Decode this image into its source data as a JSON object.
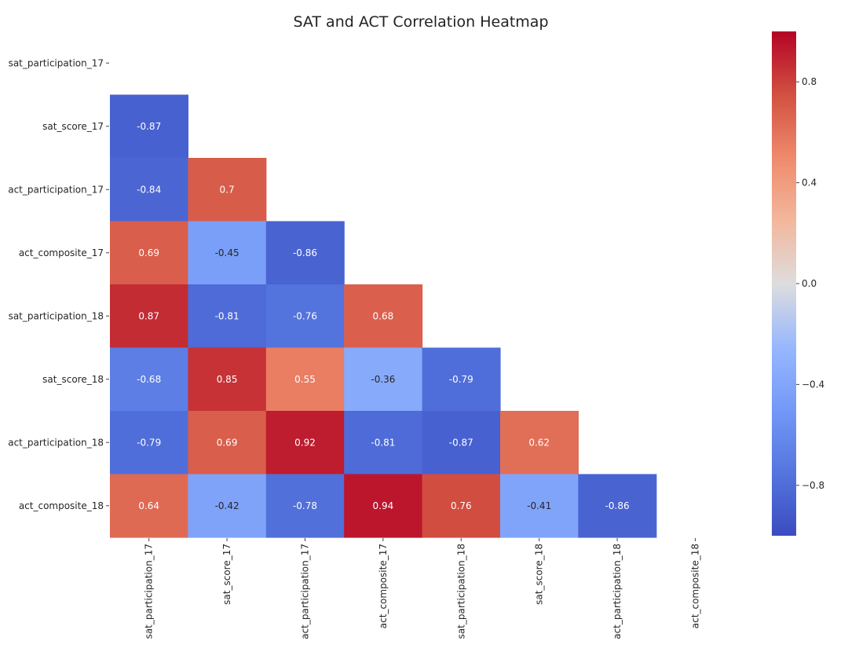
{
  "chart_data": {
    "type": "heatmap",
    "title": "SAT and ACT Correlation Heatmap",
    "xlabel": "",
    "ylabel": "",
    "rows": [
      "sat_participation_17",
      "sat_score_17",
      "act_participation_17",
      "act_composite_17",
      "sat_participation_18",
      "sat_score_18",
      "act_participation_18",
      "act_composite_18"
    ],
    "columns": [
      "sat_participation_17",
      "sat_score_17",
      "act_participation_17",
      "act_composite_17",
      "sat_participation_18",
      "sat_score_18",
      "act_participation_18",
      "act_composite_18"
    ],
    "mask": "upper-triangle-including-diagonal",
    "cells": [
      {
        "row": 1,
        "col": 0,
        "value": -0.87,
        "label": "-0.87"
      },
      {
        "row": 2,
        "col": 0,
        "value": -0.84,
        "label": "-0.84"
      },
      {
        "row": 2,
        "col": 1,
        "value": 0.7,
        "label": "0.7"
      },
      {
        "row": 3,
        "col": 0,
        "value": 0.69,
        "label": "0.69"
      },
      {
        "row": 3,
        "col": 1,
        "value": -0.45,
        "label": "-0.45"
      },
      {
        "row": 3,
        "col": 2,
        "value": -0.86,
        "label": "-0.86"
      },
      {
        "row": 4,
        "col": 0,
        "value": 0.87,
        "label": "0.87"
      },
      {
        "row": 4,
        "col": 1,
        "value": -0.81,
        "label": "-0.81"
      },
      {
        "row": 4,
        "col": 2,
        "value": -0.76,
        "label": "-0.76"
      },
      {
        "row": 4,
        "col": 3,
        "value": 0.68,
        "label": "0.68"
      },
      {
        "row": 5,
        "col": 0,
        "value": -0.68,
        "label": "-0.68"
      },
      {
        "row": 5,
        "col": 1,
        "value": 0.85,
        "label": "0.85"
      },
      {
        "row": 5,
        "col": 2,
        "value": 0.55,
        "label": "0.55"
      },
      {
        "row": 5,
        "col": 3,
        "value": -0.36,
        "label": "-0.36"
      },
      {
        "row": 5,
        "col": 4,
        "value": -0.79,
        "label": "-0.79"
      },
      {
        "row": 6,
        "col": 0,
        "value": -0.79,
        "label": "-0.79"
      },
      {
        "row": 6,
        "col": 1,
        "value": 0.69,
        "label": "0.69"
      },
      {
        "row": 6,
        "col": 2,
        "value": 0.92,
        "label": "0.92"
      },
      {
        "row": 6,
        "col": 3,
        "value": -0.81,
        "label": "-0.81"
      },
      {
        "row": 6,
        "col": 4,
        "value": -0.87,
        "label": "-0.87"
      },
      {
        "row": 6,
        "col": 5,
        "value": 0.62,
        "label": "0.62"
      },
      {
        "row": 7,
        "col": 0,
        "value": 0.64,
        "label": "0.64"
      },
      {
        "row": 7,
        "col": 1,
        "value": -0.42,
        "label": "-0.42"
      },
      {
        "row": 7,
        "col": 2,
        "value": -0.78,
        "label": "-0.78"
      },
      {
        "row": 7,
        "col": 3,
        "value": 0.94,
        "label": "0.94"
      },
      {
        "row": 7,
        "col": 4,
        "value": 0.76,
        "label": "0.76"
      },
      {
        "row": 7,
        "col": 5,
        "value": -0.41,
        "label": "-0.41"
      },
      {
        "row": 7,
        "col": 6,
        "value": -0.86,
        "label": "-0.86"
      }
    ],
    "colorbar": {
      "colormap": "coolwarm",
      "vmin": -1.0,
      "vmax": 1.0,
      "ticks": [
        0.8,
        0.4,
        0.0,
        -0.4,
        -0.8
      ],
      "tick_labels": [
        "0.8",
        "0.4",
        "0.0",
        "−0.4",
        "−0.8"
      ]
    },
    "grid": false,
    "legend_position": "right"
  }
}
